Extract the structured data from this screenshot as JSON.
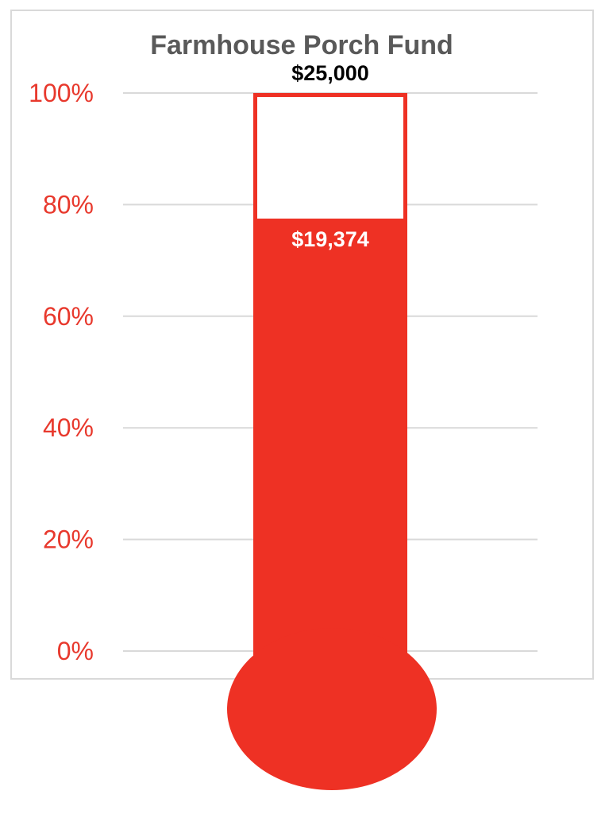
{
  "chart_data": {
    "type": "bar",
    "subtype": "thermometer",
    "title": "Farmhouse Porch Fund",
    "goal": 25000,
    "value": 19374,
    "goal_label": "$25,000",
    "value_label": "$19,374",
    "y_ticks": [
      "0%",
      "20%",
      "40%",
      "60%",
      "80%",
      "100%"
    ],
    "ylim": [
      0,
      1
    ],
    "grid": true,
    "legend": "none"
  },
  "colors": {
    "fill": "#ee3124",
    "tick_labels": "#e8392d",
    "title": "#595959",
    "goal_label": "#000000",
    "value_label": "#ffffff",
    "gridlines": "#d9d9d9",
    "frame": "#d9d9d9"
  }
}
